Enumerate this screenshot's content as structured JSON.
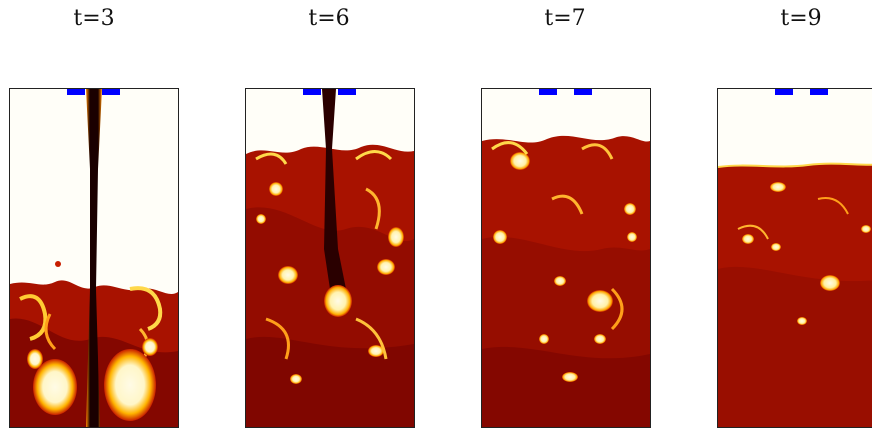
{
  "panels": [
    {
      "label": "t=3"
    },
    {
      "label": "t=6"
    },
    {
      "label": "t=7"
    },
    {
      "label": "t=9"
    }
  ],
  "colors": {
    "empty": "#fffef8",
    "fluid_dark": "#6e0000",
    "fluid_mid": "#b51f00",
    "plume_dark": "#1a0000",
    "hot": "#ffd43b",
    "white": "#fffbe6",
    "inlet": "#0000ff"
  }
}
